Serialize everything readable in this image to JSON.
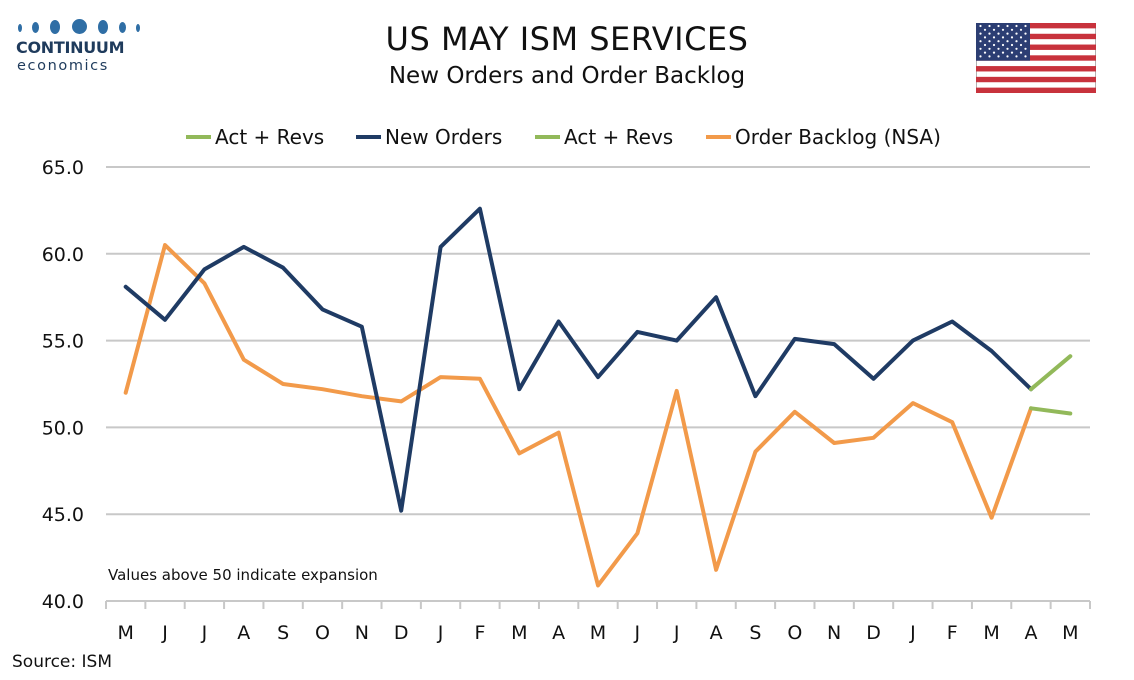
{
  "header": {
    "logo_brand": "CONTINUUM",
    "logo_sub": "economics",
    "title": "US MAY ISM SERVICES",
    "subtitle": "New Orders and Order Backlog"
  },
  "flag_icon": "us-flag-icon",
  "source": "Source: ISM",
  "colors": {
    "new_orders": "#1f3b64",
    "order_backlog": "#f29a4a",
    "act_revs": "#92b95a",
    "grid": "#c8c8c8"
  },
  "chart_data": {
    "type": "line",
    "title": "US MAY ISM SERVICES",
    "subtitle": "New Orders and Order Backlog",
    "categories": [
      "M",
      "J",
      "J",
      "A",
      "S",
      "O",
      "N",
      "D",
      "J",
      "F",
      "M",
      "A",
      "M",
      "J",
      "J",
      "A",
      "S",
      "O",
      "N",
      "D",
      "J",
      "F",
      "M",
      "A",
      "M"
    ],
    "ylim": [
      40,
      65
    ],
    "yticks": [
      "40.0",
      "45.0",
      "50.0",
      "55.0",
      "60.0",
      "65.0"
    ],
    "grid": true,
    "legend_position": "top",
    "annotation": "Values above 50 indicate expansion",
    "series": [
      {
        "name": "Act + Revs",
        "color": "#92b95a",
        "values": [
          null,
          null,
          null,
          null,
          null,
          null,
          null,
          null,
          null,
          null,
          null,
          null,
          null,
          null,
          null,
          null,
          null,
          null,
          null,
          null,
          null,
          null,
          null,
          52.2,
          54.1
        ]
      },
      {
        "name": "New Orders",
        "color": "#1f3b64",
        "values": [
          58.1,
          56.2,
          59.1,
          60.4,
          59.2,
          56.8,
          55.8,
          45.2,
          60.4,
          62.6,
          52.2,
          56.1,
          52.9,
          55.5,
          55.0,
          57.5,
          51.8,
          55.1,
          54.8,
          52.8,
          55.0,
          56.1,
          54.4,
          52.2,
          null
        ]
      },
      {
        "name": "Act + Revs",
        "color": "#92b95a",
        "values": [
          null,
          null,
          null,
          null,
          null,
          null,
          null,
          null,
          null,
          null,
          null,
          null,
          null,
          null,
          null,
          null,
          null,
          null,
          null,
          null,
          null,
          null,
          null,
          51.1,
          50.8
        ]
      },
      {
        "name": "Order Backlog (NSA)",
        "color": "#f29a4a",
        "values": [
          52.0,
          60.5,
          58.3,
          53.9,
          52.5,
          52.2,
          51.8,
          51.5,
          52.9,
          52.8,
          48.5,
          49.7,
          40.9,
          43.9,
          52.1,
          41.8,
          48.6,
          50.9,
          49.1,
          49.4,
          51.4,
          50.3,
          44.8,
          51.1,
          null
        ]
      }
    ]
  }
}
